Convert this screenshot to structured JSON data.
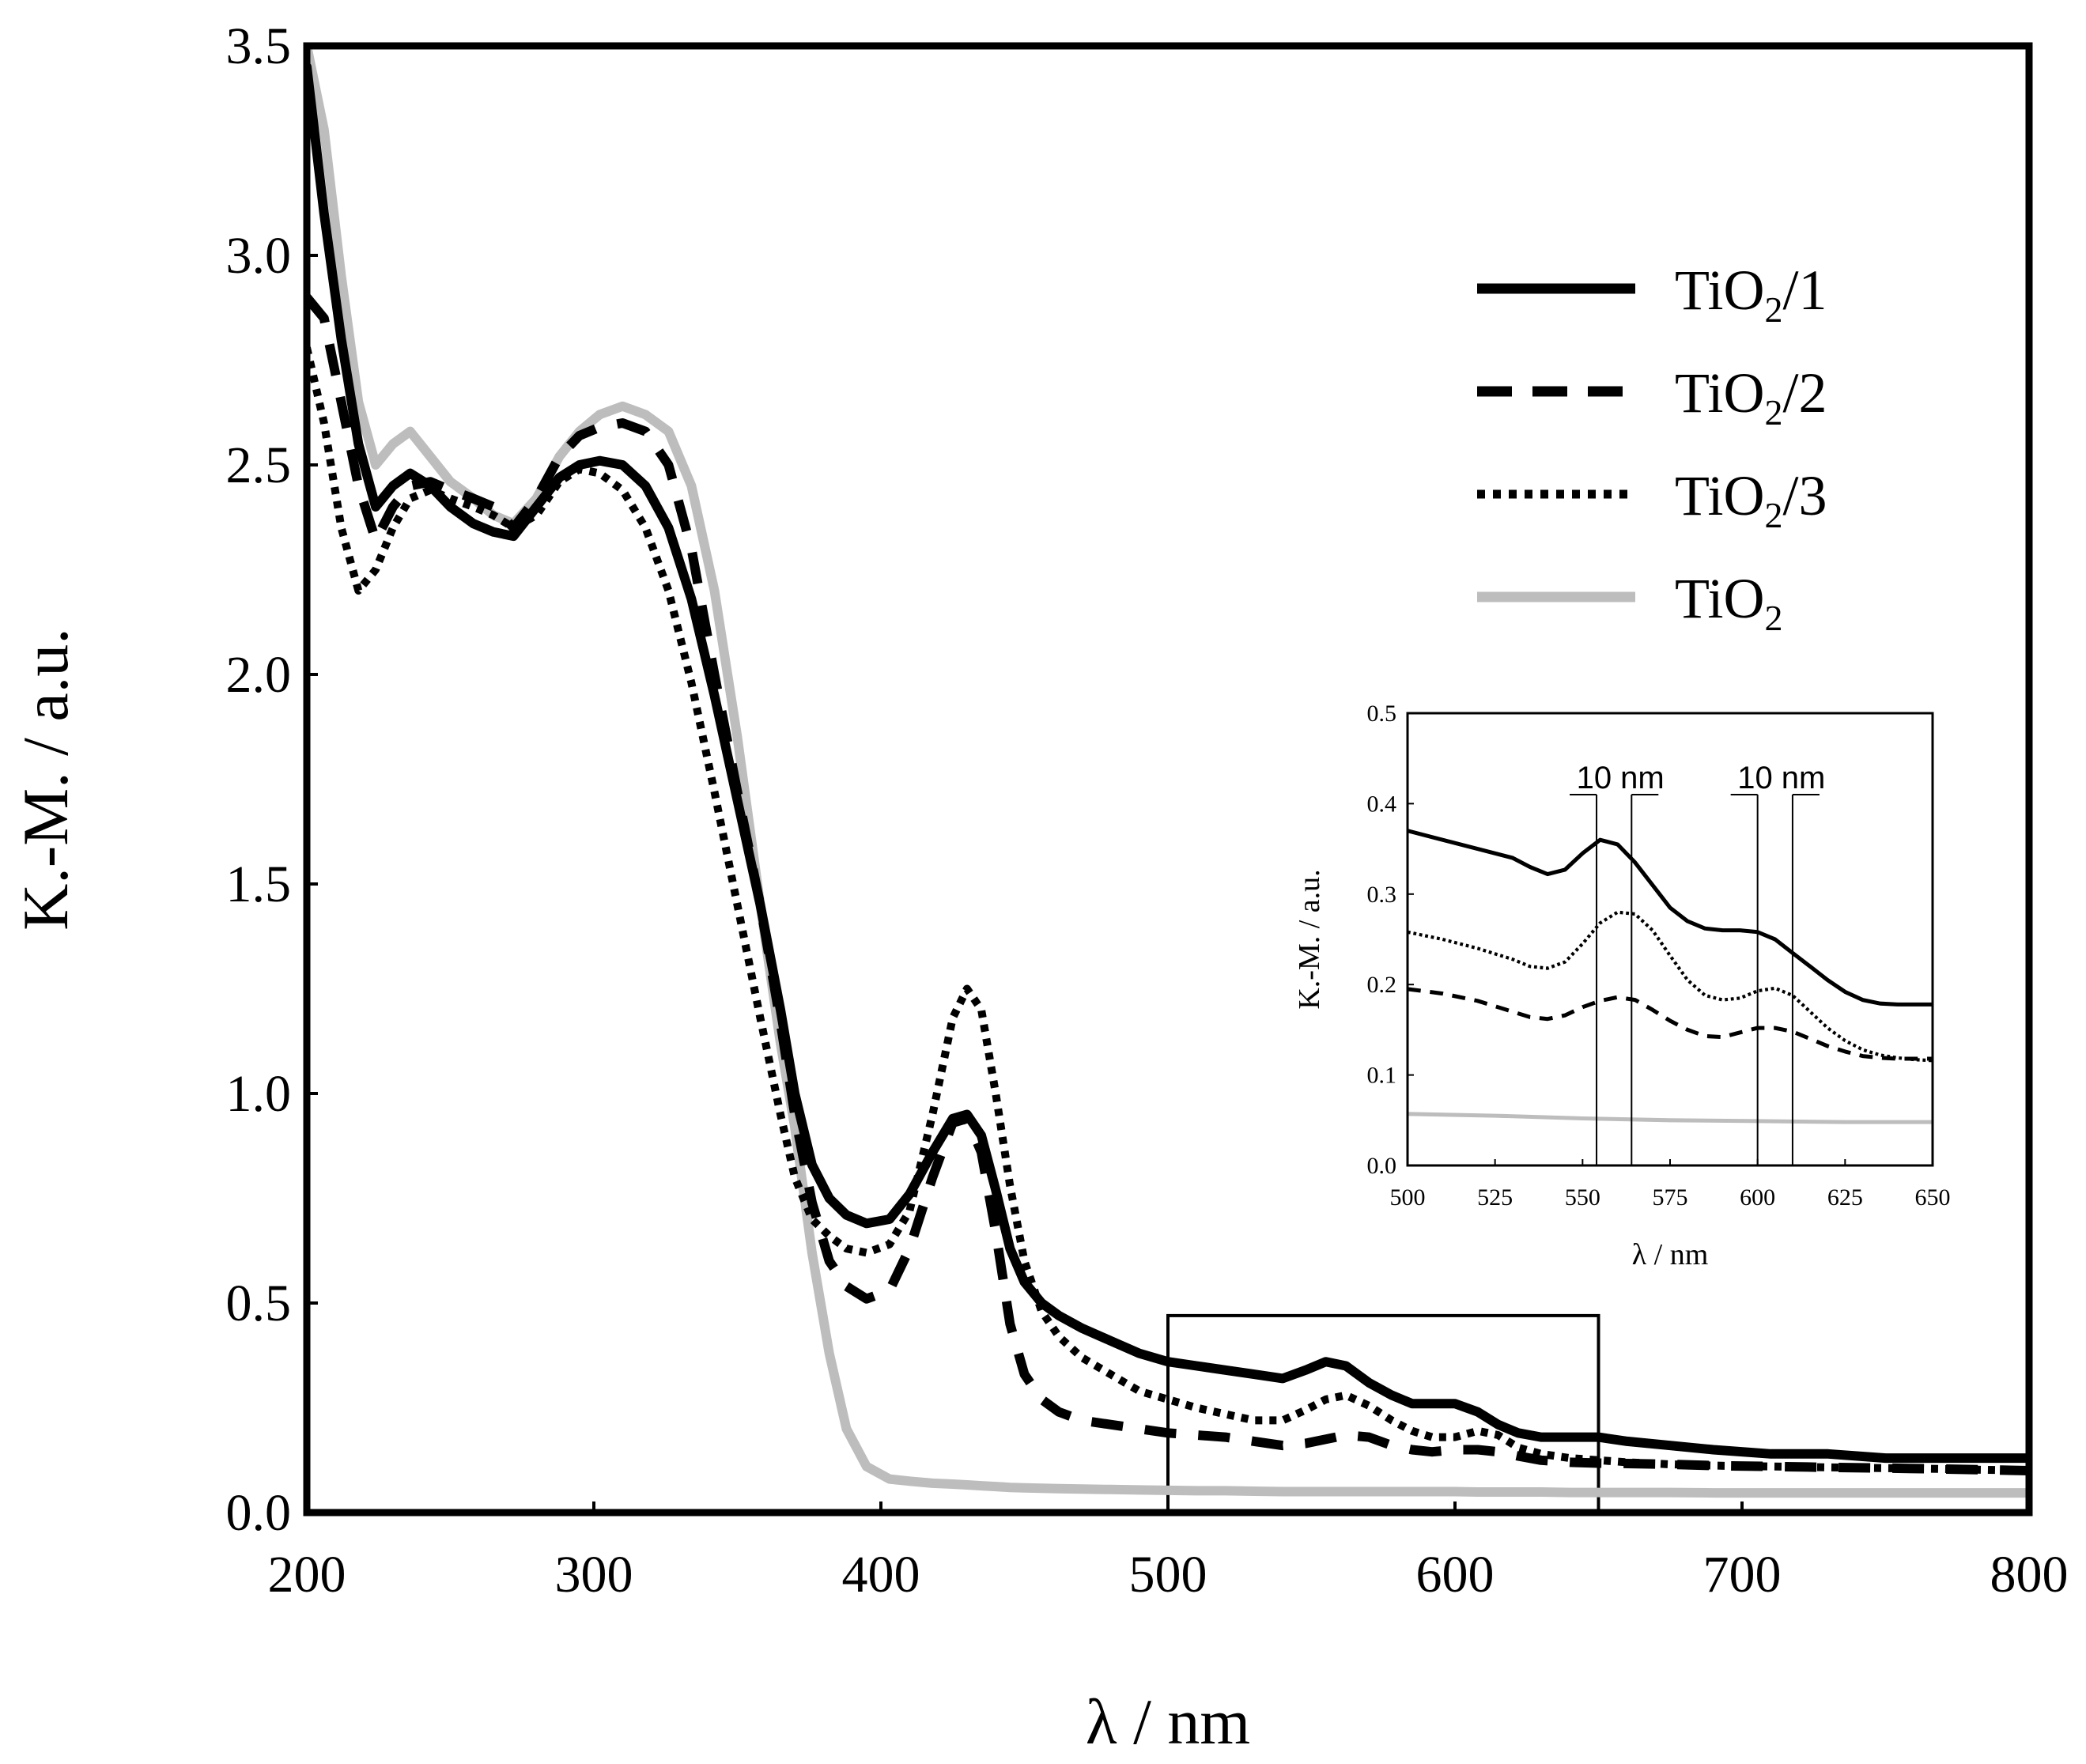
{
  "chart_data": [
    {
      "type": "line",
      "xlabel": "λ / nm",
      "ylabel": "K.-M. / a.u.",
      "xlim": [
        200,
        800
      ],
      "ylim": [
        0,
        3.5
      ],
      "x_ticks": [
        "200",
        "300",
        "400",
        "500",
        "600",
        "700",
        "800"
      ],
      "y_ticks": [
        "0.0",
        "0.5",
        "1.0",
        "1.5",
        "2.0",
        "2.5",
        "3.0",
        "3.5"
      ],
      "grid": false,
      "legend_position": "top-right",
      "zoom_region": {
        "x": [
          500,
          650
        ],
        "y": [
          0,
          0.47
        ]
      },
      "series": [
        {
          "id": "tio2_1",
          "name": "TiO2/1",
          "legend_main": "TiO",
          "legend_sub": "2",
          "legend_suffix": "/1",
          "style": "solid-black",
          "x": [
            200,
            206,
            212,
            218,
            224,
            230,
            236,
            243,
            250,
            258,
            265,
            272,
            280,
            288,
            295,
            302,
            310,
            318,
            326,
            334,
            342,
            350,
            358,
            365,
            370,
            376,
            382,
            388,
            395,
            403,
            410,
            418,
            425,
            430,
            435,
            440,
            445,
            450,
            456,
            462,
            470,
            480,
            490,
            500,
            510,
            520,
            530,
            540,
            548,
            555,
            562,
            570,
            578,
            585,
            592,
            600,
            608,
            615,
            622,
            630,
            640,
            650,
            660,
            675,
            690,
            710,
            730,
            750,
            770,
            800
          ],
          "y": [
            3.45,
            3.1,
            2.8,
            2.55,
            2.4,
            2.45,
            2.48,
            2.45,
            2.4,
            2.36,
            2.34,
            2.33,
            2.4,
            2.47,
            2.5,
            2.51,
            2.5,
            2.45,
            2.35,
            2.18,
            1.95,
            1.7,
            1.45,
            1.2,
            1.0,
            0.83,
            0.75,
            0.71,
            0.69,
            0.7,
            0.76,
            0.86,
            0.94,
            0.95,
            0.9,
            0.77,
            0.63,
            0.55,
            0.5,
            0.47,
            0.44,
            0.41,
            0.38,
            0.36,
            0.35,
            0.34,
            0.33,
            0.32,
            0.34,
            0.36,
            0.35,
            0.31,
            0.28,
            0.26,
            0.26,
            0.26,
            0.24,
            0.21,
            0.19,
            0.18,
            0.18,
            0.18,
            0.17,
            0.16,
            0.15,
            0.14,
            0.14,
            0.13,
            0.13,
            0.13
          ]
        },
        {
          "id": "tio2_2",
          "name": "TiO2/2",
          "legend_main": "TiO",
          "legend_sub": "2",
          "legend_suffix": "/2",
          "style": "dashed-black",
          "x": [
            200,
            206,
            212,
            218,
            224,
            230,
            236,
            243,
            250,
            258,
            265,
            272,
            280,
            288,
            295,
            302,
            310,
            318,
            326,
            334,
            342,
            350,
            358,
            365,
            370,
            376,
            382,
            388,
            395,
            403,
            410,
            418,
            425,
            430,
            435,
            440,
            445,
            450,
            456,
            462,
            470,
            480,
            490,
            500,
            510,
            520,
            530,
            540,
            548,
            555,
            562,
            570,
            578,
            585,
            592,
            600,
            608,
            615,
            622,
            630,
            640,
            650,
            660,
            675,
            690,
            710,
            730,
            750,
            770,
            800
          ],
          "y": [
            2.9,
            2.85,
            2.65,
            2.45,
            2.32,
            2.4,
            2.45,
            2.46,
            2.44,
            2.42,
            2.4,
            2.35,
            2.42,
            2.52,
            2.57,
            2.59,
            2.6,
            2.58,
            2.5,
            2.3,
            2.0,
            1.72,
            1.45,
            1.17,
            0.95,
            0.74,
            0.6,
            0.54,
            0.51,
            0.53,
            0.63,
            0.8,
            0.93,
            0.94,
            0.86,
            0.67,
            0.45,
            0.33,
            0.27,
            0.24,
            0.22,
            0.21,
            0.2,
            0.19,
            0.185,
            0.18,
            0.17,
            0.16,
            0.165,
            0.175,
            0.185,
            0.18,
            0.16,
            0.15,
            0.145,
            0.15,
            0.15,
            0.145,
            0.135,
            0.125,
            0.12,
            0.118,
            0.117,
            0.115,
            0.112,
            0.11,
            0.108,
            0.106,
            0.104,
            0.1
          ]
        },
        {
          "id": "tio2_3",
          "name": "TiO2/3",
          "legend_main": "TiO",
          "legend_sub": "2",
          "legend_suffix": "/3",
          "style": "dotted-black",
          "x": [
            200,
            206,
            212,
            218,
            224,
            230,
            236,
            243,
            250,
            258,
            265,
            272,
            280,
            288,
            295,
            302,
            310,
            318,
            326,
            334,
            342,
            350,
            358,
            365,
            370,
            376,
            382,
            388,
            395,
            403,
            410,
            418,
            425,
            430,
            435,
            440,
            445,
            450,
            456,
            462,
            470,
            480,
            490,
            500,
            510,
            520,
            530,
            540,
            548,
            555,
            562,
            570,
            578,
            585,
            592,
            600,
            608,
            615,
            622,
            630,
            640,
            650,
            660,
            675,
            690,
            710,
            730,
            750,
            770,
            800
          ],
          "y": [
            2.78,
            2.6,
            2.35,
            2.2,
            2.25,
            2.35,
            2.42,
            2.44,
            2.42,
            2.4,
            2.38,
            2.35,
            2.38,
            2.46,
            2.49,
            2.48,
            2.44,
            2.35,
            2.2,
            1.98,
            1.72,
            1.45,
            1.18,
            0.95,
            0.8,
            0.7,
            0.66,
            0.63,
            0.62,
            0.64,
            0.72,
            0.95,
            1.18,
            1.25,
            1.2,
            1.0,
            0.78,
            0.6,
            0.48,
            0.42,
            0.37,
            0.33,
            0.29,
            0.27,
            0.25,
            0.235,
            0.22,
            0.22,
            0.245,
            0.27,
            0.28,
            0.255,
            0.22,
            0.195,
            0.18,
            0.18,
            0.195,
            0.185,
            0.155,
            0.14,
            0.13,
            0.125,
            0.12,
            0.115,
            0.112,
            0.11,
            0.108,
            0.106,
            0.104,
            0.1
          ]
        },
        {
          "id": "tio2",
          "name": "TiO2",
          "legend_main": "TiO",
          "legend_sub": "2",
          "legend_suffix": "",
          "style": "solid-gray",
          "x": [
            200,
            206,
            212,
            218,
            224,
            230,
            236,
            243,
            250,
            258,
            265,
            272,
            280,
            288,
            295,
            302,
            310,
            318,
            326,
            334,
            342,
            350,
            358,
            365,
            370,
            376,
            382,
            388,
            395,
            403,
            410,
            418,
            425,
            430,
            435,
            440,
            445,
            450,
            456,
            462,
            470,
            480,
            490,
            500,
            510,
            520,
            530,
            540,
            548,
            555,
            562,
            570,
            578,
            585,
            592,
            600,
            608,
            615,
            622,
            630,
            640,
            650,
            660,
            675,
            690,
            710,
            730,
            750,
            770,
            800
          ],
          "y": [
            3.5,
            3.3,
            2.95,
            2.65,
            2.5,
            2.55,
            2.58,
            2.52,
            2.46,
            2.42,
            2.38,
            2.36,
            2.42,
            2.52,
            2.58,
            2.62,
            2.64,
            2.62,
            2.58,
            2.45,
            2.2,
            1.85,
            1.45,
            1.12,
            0.92,
            0.62,
            0.38,
            0.2,
            0.11,
            0.08,
            0.075,
            0.07,
            0.068,
            0.066,
            0.064,
            0.062,
            0.06,
            0.059,
            0.058,
            0.057,
            0.056,
            0.055,
            0.054,
            0.053,
            0.052,
            0.052,
            0.051,
            0.05,
            0.05,
            0.05,
            0.05,
            0.05,
            0.05,
            0.05,
            0.05,
            0.05,
            0.049,
            0.049,
            0.049,
            0.049,
            0.048,
            0.048,
            0.048,
            0.048,
            0.047,
            0.047,
            0.047,
            0.047,
            0.047,
            0.047
          ]
        }
      ]
    },
    {
      "type": "line",
      "role": "inset",
      "xlabel": "λ / nm",
      "ylabel": "K.-M. / a.u.",
      "xlim": [
        500,
        650
      ],
      "ylim": [
        0,
        0.5
      ],
      "x_ticks": [
        "500",
        "525",
        "550",
        "575",
        "600",
        "625",
        "650"
      ],
      "y_ticks": [
        "0.0",
        "0.1",
        "0.2",
        "0.3",
        "0.4",
        "0.5"
      ],
      "grid": false,
      "annotations": [
        {
          "text": "10 nm",
          "from_x": 554,
          "to_x": 564
        },
        {
          "text": "10 nm",
          "from_x": 600,
          "to_x": 610
        }
      ],
      "series": [
        {
          "id": "tio2_1",
          "name": "TiO2/1",
          "style": "solid-black",
          "x": [
            500,
            510,
            520,
            530,
            535,
            540,
            545,
            550,
            555,
            560,
            565,
            570,
            575,
            580,
            585,
            590,
            595,
            600,
            605,
            610,
            615,
            620,
            625,
            630,
            635,
            640,
            645,
            650
          ],
          "y": [
            0.37,
            0.36,
            0.35,
            0.34,
            0.33,
            0.322,
            0.327,
            0.345,
            0.36,
            0.355,
            0.335,
            0.31,
            0.285,
            0.27,
            0.262,
            0.26,
            0.26,
            0.258,
            0.25,
            0.235,
            0.22,
            0.205,
            0.192,
            0.183,
            0.179,
            0.178,
            0.178,
            0.178
          ]
        },
        {
          "id": "tio2_2",
          "name": "TiO2/2",
          "style": "dashed-black",
          "x": [
            500,
            510,
            520,
            530,
            535,
            540,
            545,
            550,
            555,
            560,
            565,
            570,
            575,
            580,
            585,
            590,
            595,
            600,
            605,
            610,
            615,
            620,
            625,
            630,
            635,
            640,
            645,
            650
          ],
          "y": [
            0.195,
            0.19,
            0.182,
            0.17,
            0.164,
            0.162,
            0.166,
            0.175,
            0.182,
            0.186,
            0.183,
            0.172,
            0.16,
            0.15,
            0.143,
            0.142,
            0.147,
            0.152,
            0.152,
            0.148,
            0.14,
            0.132,
            0.126,
            0.121,
            0.119,
            0.118,
            0.118,
            0.118
          ]
        },
        {
          "id": "tio2_3",
          "name": "TiO2/3",
          "style": "dotted-black",
          "x": [
            500,
            510,
            520,
            530,
            535,
            540,
            545,
            550,
            555,
            560,
            565,
            570,
            575,
            580,
            585,
            590,
            595,
            600,
            605,
            610,
            615,
            620,
            625,
            630,
            635,
            640,
            645,
            650
          ],
          "y": [
            0.258,
            0.25,
            0.24,
            0.228,
            0.22,
            0.218,
            0.225,
            0.245,
            0.268,
            0.28,
            0.278,
            0.26,
            0.232,
            0.205,
            0.188,
            0.183,
            0.185,
            0.193,
            0.196,
            0.188,
            0.17,
            0.152,
            0.138,
            0.128,
            0.122,
            0.119,
            0.117,
            0.116
          ]
        },
        {
          "id": "tio2",
          "name": "TiO2",
          "style": "solid-gray",
          "x": [
            500,
            525,
            550,
            575,
            600,
            625,
            650
          ],
          "y": [
            0.057,
            0.055,
            0.052,
            0.05,
            0.049,
            0.048,
            0.048
          ]
        }
      ]
    }
  ]
}
